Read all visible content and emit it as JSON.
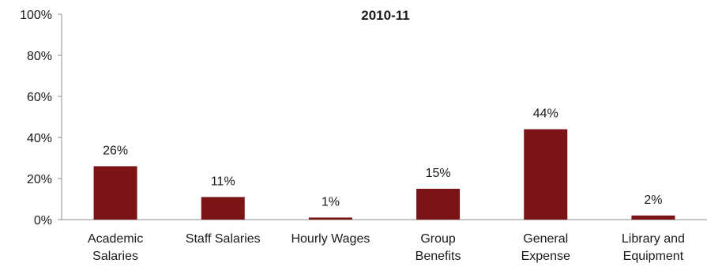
{
  "chart_data": {
    "type": "bar",
    "title": "2010-11",
    "categories": [
      [
        "Academic",
        "Salaries"
      ],
      [
        "Staff Salaries"
      ],
      [
        "Hourly Wages"
      ],
      [
        "Group",
        "Benefits"
      ],
      [
        "General",
        "Expense"
      ],
      [
        "Library and",
        "Equipment"
      ]
    ],
    "values": [
      26,
      11,
      1,
      15,
      44,
      2
    ],
    "data_labels": [
      "26%",
      "11%",
      "1%",
      "15%",
      "44%",
      "2%"
    ],
    "ylim": [
      0,
      100
    ],
    "yticks": [
      0,
      20,
      40,
      60,
      80,
      100
    ],
    "ytick_labels": [
      "0%",
      "20%",
      "40%",
      "60%",
      "80%",
      "100%"
    ],
    "grid": false,
    "legend": "none",
    "bar_color": "#7b1416",
    "axis_color": "#8c8c8c"
  }
}
